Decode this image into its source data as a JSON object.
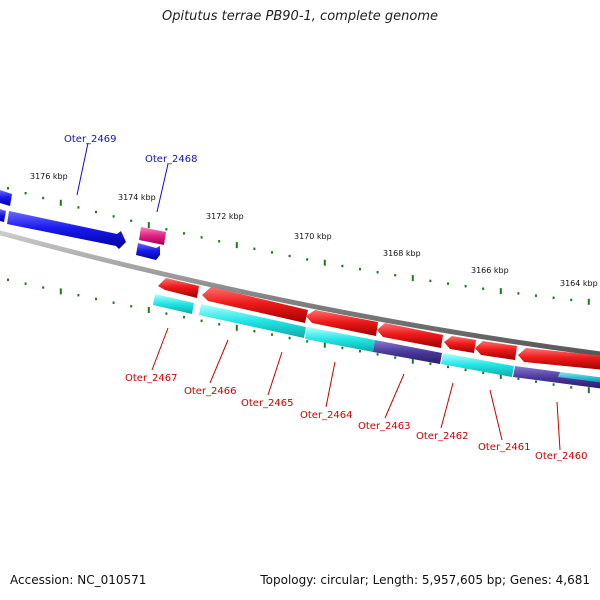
{
  "title": "Opitutus terrae PB90-1, complete genome",
  "footer": {
    "accession": "Accession: NC_010571",
    "topology": "Topology: circular; Length: 5,957,605 bp; Genes: 4,681"
  },
  "scale_labels": [
    "3176 kbp",
    "3174 kbp",
    "3172 kbp",
    "3170 kbp",
    "3168 kbp",
    "3166 kbp",
    "3164 kbp"
  ],
  "top_gene_labels": [
    "Oter_2469",
    "Oter_2468"
  ],
  "bottom_gene_labels": [
    "Oter_2467",
    "Oter_2466",
    "Oter_2465",
    "Oter_2464",
    "Oter_2463",
    "Oter_2462",
    "Oter_2461",
    "Oter_2460"
  ],
  "colors": {
    "forward_gene": "#1010e0",
    "forward_rna": "#e0207f",
    "reverse_gene": "#e01010",
    "reverse_cds_track": "#22e5e5",
    "reverse_dark_track": "#4a3a9a",
    "backbone": "#888888",
    "tick": "#1c7a1c",
    "label_top": "#1010c8",
    "label_bottom": "#cc0000"
  }
}
